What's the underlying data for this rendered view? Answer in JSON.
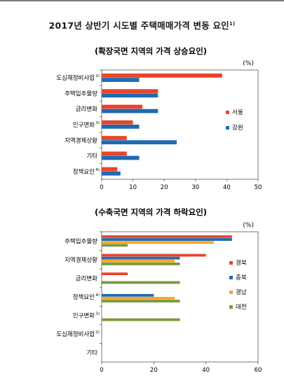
{
  "page": {
    "title": "2017년 상반기 시도별 주택매매가격 변동 요인",
    "title_note": "1)"
  },
  "chart_data": [
    {
      "type": "bar",
      "orientation": "horizontal",
      "title": "(확장국면 지역의 가격 상승요인)",
      "unit": "(%)",
      "categories": [
        "도심재정비사업",
        "주택입주물량",
        "금리변화",
        "인구변화",
        "지역경제상황",
        "기타",
        "정책요인"
      ],
      "category_notes": [
        "2)",
        "",
        "",
        "3)",
        "",
        "",
        "4)"
      ],
      "series": [
        {
          "name": "서울",
          "color": "#e8452e",
          "values": [
            38.5,
            18,
            13,
            10,
            8,
            8,
            5
          ]
        },
        {
          "name": "강원",
          "color": "#1f6bb0",
          "values": [
            12,
            18,
            18,
            12,
            24,
            12,
            6
          ]
        }
      ],
      "xlim": [
        0,
        50
      ],
      "xticks": [
        0,
        10,
        20,
        30,
        40,
        50
      ],
      "legend_position": "right"
    },
    {
      "type": "bar",
      "orientation": "horizontal",
      "title": "(수축국면 지역의 가격 하락요인)",
      "unit": "(%)",
      "categories": [
        "주택입주물량",
        "지역경제상황",
        "금리변화",
        "정책요인",
        "인구변화",
        "도심재정비사업",
        "기타"
      ],
      "category_notes": [
        "",
        "",
        "",
        "4)",
        "3)",
        "2)",
        ""
      ],
      "series": [
        {
          "name": "경북",
          "color": "#e8452e",
          "values": [
            50,
            40,
            10,
            0,
            0,
            0,
            0
          ]
        },
        {
          "name": "충북",
          "color": "#1f6bb0",
          "values": [
            50,
            30,
            0,
            20,
            0,
            0,
            0
          ]
        },
        {
          "name": "경남",
          "color": "#f7a428",
          "values": [
            43,
            28,
            0,
            28,
            0,
            0,
            0
          ]
        },
        {
          "name": "대전",
          "color": "#7a9a3a",
          "values": [
            10,
            30,
            30,
            30,
            30,
            0,
            0
          ]
        }
      ],
      "xlim": [
        0,
        60
      ],
      "xticks": [
        0,
        20,
        40,
        60
      ],
      "legend_position": "right"
    }
  ]
}
